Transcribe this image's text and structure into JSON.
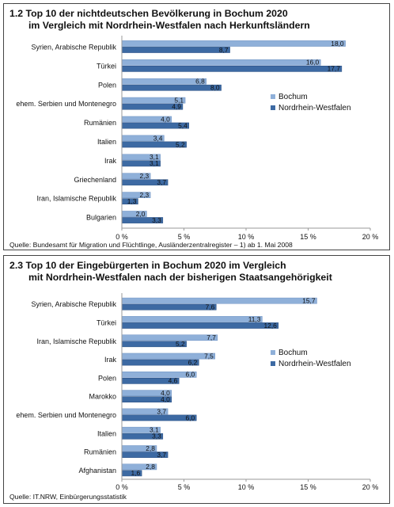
{
  "colors": {
    "bochum": "#8fb0d9",
    "nrw": "#3d6aa3",
    "bochum_edge": "#6f93c4",
    "nrw_edge": "#2a4f82",
    "axis": "#9a9a9a"
  },
  "chart_data": [
    {
      "type": "bar",
      "orientation": "horizontal",
      "title_line1": "1.2  Top 10 der nichtdeutschen Bevölkerung in Bochum 2020",
      "title_line2": "im Vergleich mit Nordrhein-Westfalen nach Herkunftsländern",
      "categories": [
        "Syrien, Arabische Republik",
        "Türkei",
        "Polen",
        "ehem. Serbien und Montenegro",
        "Rumänien",
        "Italien",
        "Irak",
        "Griechenland",
        "Iran, Islamische Republik",
        "Bulgarien"
      ],
      "series": [
        {
          "name": "Bochum",
          "values": [
            18.0,
            16.0,
            6.8,
            5.1,
            4.0,
            3.4,
            3.1,
            2.3,
            2.3,
            2.0
          ],
          "labels": [
            "18,0",
            "16,0",
            "6,8",
            "5,1",
            "4,0",
            "3,4",
            "3,1",
            "2,3",
            "2,3",
            "2,0"
          ]
        },
        {
          "name": "Nordrhein-Westfalen",
          "values": [
            8.7,
            17.7,
            8.0,
            4.9,
            5.4,
            5.2,
            3.1,
            3.7,
            1.3,
            3.3
          ],
          "labels": [
            "8,7",
            "17,7",
            "8,0",
            "4,9",
            "5,4",
            "5,2",
            "3,1",
            "3,7",
            "1,3",
            "3,3"
          ]
        }
      ],
      "xlim": [
        0,
        20
      ],
      "ticks": [
        "0 %",
        "5 %",
        "10 %",
        "15 %",
        "20 %"
      ],
      "legend": [
        "Bochum",
        "Nordrhein-Westfalen"
      ],
      "legend_position": "right",
      "source": "Quelle: Bundesamt für Migration und Flüchtlinge, Ausländerzentralregister – 1) ab 1. Mai 2008",
      "grid": false
    },
    {
      "type": "bar",
      "orientation": "horizontal",
      "title_line1": "2.3  Top 10 der Eingebürgerten in Bochum 2020 im Vergleich",
      "title_line2": "mit Nordrhein-Westfalen nach der bisherigen Staatsangehörigkeit",
      "categories": [
        "Syrien, Arabische Republik",
        "Türkei",
        "Iran, Islamische Republik",
        "Irak",
        "Polen",
        "Marokko",
        "ehem. Serbien und Montenegro",
        "Italien",
        "Rumänien",
        "Afghanistan"
      ],
      "series": [
        {
          "name": "Bochum",
          "values": [
            15.7,
            11.3,
            7.7,
            7.5,
            6.0,
            4.0,
            3.7,
            3.1,
            2.8,
            2.8
          ],
          "labels": [
            "15,7",
            "11,3",
            "7,7",
            "7,5",
            "6,0",
            "4,0",
            "3,7",
            "3,1",
            "2,8",
            "2,8"
          ]
        },
        {
          "name": "Nordrhein-Westfalen",
          "values": [
            7.6,
            12.6,
            5.2,
            6.2,
            4.6,
            4.0,
            6.0,
            3.3,
            3.7,
            1.6
          ],
          "labels": [
            "7,6",
            "12,6",
            "5,2",
            "6,2",
            "4,6",
            "4,0",
            "6,0",
            "3,3",
            "3,7",
            "1,6"
          ]
        }
      ],
      "xlim": [
        0,
        20
      ],
      "ticks": [
        "0 %",
        "5 %",
        "10 %",
        "15 %",
        "20 %"
      ],
      "legend": [
        "Bochum",
        "Nordrhein-Westfalen"
      ],
      "legend_position": "right",
      "source": "Quelle: IT.NRW, Einbürgerungsstatistik",
      "grid": false
    }
  ]
}
